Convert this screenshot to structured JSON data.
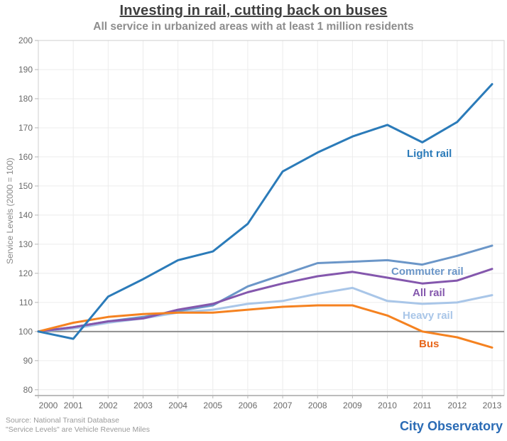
{
  "chart_data": {
    "type": "line",
    "title": "Investing in rail, cutting back on buses",
    "subtitle": "All service in urbanized areas with at least 1 million residents",
    "ylabel": "Service Levels (2000 = 100)",
    "xlabel": "",
    "x": [
      2000,
      2001,
      2002,
      2003,
      2004,
      2005,
      2006,
      2007,
      2008,
      2009,
      2010,
      2011,
      2012,
      2013
    ],
    "ylim": [
      80,
      200
    ],
    "ytick_step": 10,
    "yticks": [
      80,
      90,
      100,
      110,
      120,
      130,
      140,
      150,
      160,
      170,
      180,
      190,
      200
    ],
    "grid": true,
    "legend": "inline-labels",
    "baseline": 100,
    "baseline_color": "#8e8e8e",
    "gridline_color": "#ececec",
    "series": [
      {
        "name": "Light rail",
        "color": "#2b7bb9",
        "values": [
          100,
          97.5,
          112,
          118,
          124.5,
          127.5,
          137,
          155,
          161.5,
          167,
          171,
          165,
          172,
          185
        ]
      },
      {
        "name": "Commuter rail",
        "color": "#6b96c8",
        "values": [
          100,
          101.5,
          103.5,
          105,
          107,
          109,
          115.5,
          119.5,
          123.5,
          124,
          124.5,
          123,
          126,
          129.5
        ]
      },
      {
        "name": "All rail",
        "color": "#8457ad",
        "values": [
          100,
          101.5,
          103.5,
          104.5,
          107.5,
          109.5,
          113.5,
          116.5,
          119,
          120.5,
          118.5,
          116.5,
          117.5,
          121.5
        ]
      },
      {
        "name": "Heavy rail",
        "color": "#a9c6e8",
        "values": [
          100,
          101,
          103,
          104.5,
          106.5,
          107.5,
          109.5,
          110.5,
          113,
          115,
          110.5,
          109.5,
          110,
          112.5
        ]
      },
      {
        "name": "Bus",
        "color": "#f58220",
        "label_color": "#e8671b",
        "values": [
          100,
          103,
          105,
          106,
          106.5,
          106.5,
          107.5,
          108.5,
          109,
          109,
          105.5,
          100,
          98,
          94.5
        ]
      }
    ]
  },
  "footer": {
    "source_line1": "Source: National Transit Database",
    "source_line2": "\"Service Levels\" are Vehicle Revenue Miles",
    "brand": "City Observatory",
    "brand_color": "#2a6bb5"
  }
}
